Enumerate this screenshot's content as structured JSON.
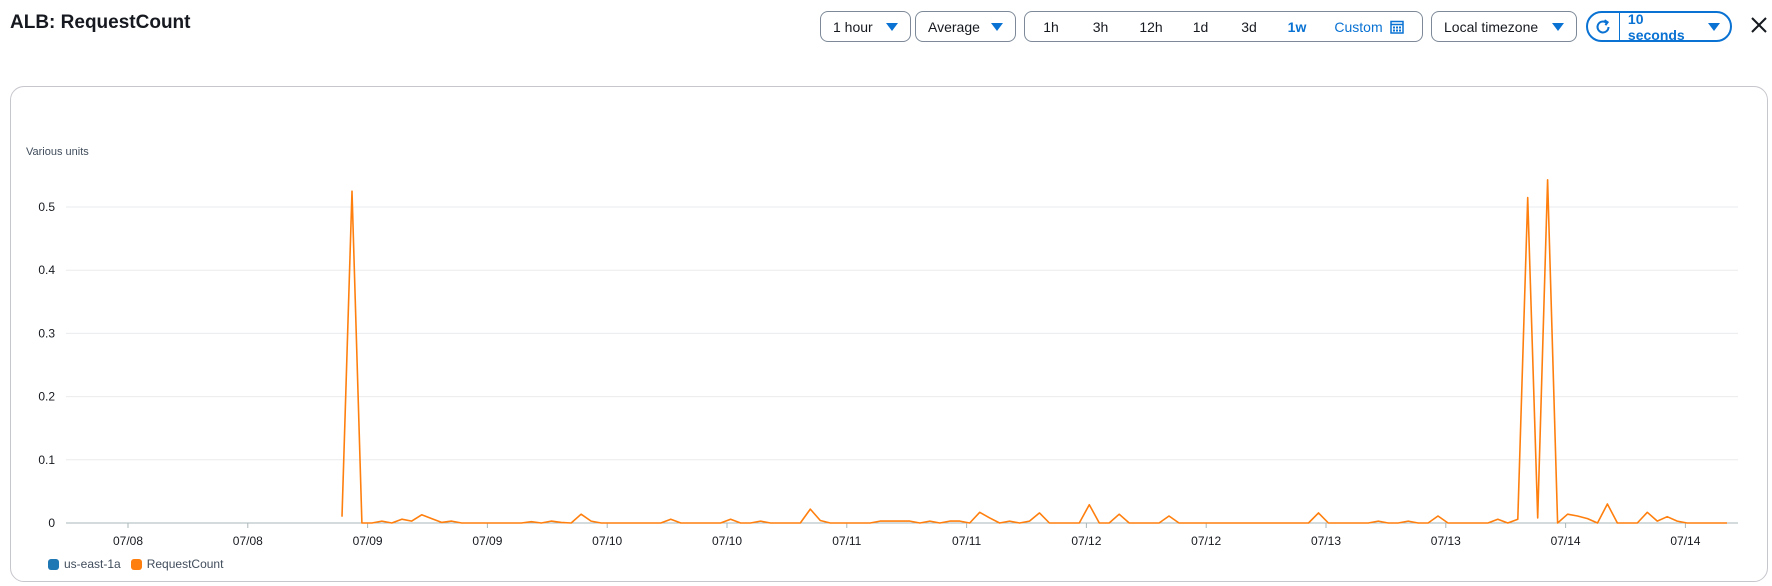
{
  "header": {
    "title": "ALB: RequestCount"
  },
  "toolbar": {
    "period": "1 hour",
    "statistic": "Average",
    "ranges": [
      "1h",
      "3h",
      "12h",
      "1d",
      "3d",
      "1w"
    ],
    "active_range": "1w",
    "custom_label": "Custom",
    "timezone": "Local timezone",
    "refresh_interval": "10 seconds"
  },
  "icons": {
    "calendar": "calendar-icon",
    "refresh": "refresh-icon",
    "close": "close-icon",
    "caret": "caret-down-icon"
  },
  "colors": {
    "accent": "#0972d3",
    "series_1": "#1f77b4",
    "series_2": "#ff7f0e",
    "grid": "#e9ebed"
  },
  "chart_data": {
    "type": "line",
    "ylabel": "Various units",
    "ylim": [
      0,
      0.55
    ],
    "yticks": [
      0,
      0.1,
      0.2,
      0.3,
      0.4,
      0.5
    ],
    "xtick_labels": [
      "07/08",
      "07/08",
      "07/09",
      "07/09",
      "07/10",
      "07/10",
      "07/11",
      "07/11",
      "07/12",
      "07/12",
      "07/13",
      "07/13",
      "07/14",
      "07/14"
    ],
    "grid": true,
    "legend_position": "bottom-left",
    "legend": [
      "us-east-1a",
      "RequestCount"
    ],
    "series": [
      {
        "name": "RequestCount",
        "color": "#ff7f0e",
        "values": [
          0.01,
          0.525,
          0,
          0,
          0.003,
          0,
          0.006,
          0.003,
          0.013,
          0.007,
          0.001,
          0.003,
          0,
          0,
          0,
          0,
          0,
          0,
          0,
          0.002,
          0,
          0.003,
          0.001,
          0,
          0.014,
          0.003,
          0,
          0,
          0,
          0,
          0,
          0,
          0,
          0.006,
          0,
          0,
          0,
          0,
          0,
          0.006,
          0,
          0,
          0.003,
          0,
          0,
          0,
          0,
          0.022,
          0.004,
          0,
          0,
          0,
          0,
          0,
          0.003,
          0.003,
          0.003,
          0.003,
          0,
          0.003,
          0,
          0.003,
          0.003,
          0,
          0.017,
          0.008,
          0,
          0.003,
          0,
          0.003,
          0.016,
          0,
          0,
          0,
          0,
          0.029,
          0,
          0,
          0.014,
          0,
          0,
          0,
          0,
          0.011,
          0,
          0,
          0,
          0,
          0,
          0,
          0,
          0,
          0,
          0,
          0,
          0,
          0,
          0,
          0.016,
          0,
          0,
          0,
          0,
          0,
          0.003,
          0,
          0,
          0.003,
          0,
          0,
          0.011,
          0,
          0,
          0,
          0,
          0,
          0.006,
          0,
          0.006,
          0.515,
          0.008,
          0.543,
          0,
          0.014,
          0.011,
          0.007,
          0,
          0.03,
          0,
          0,
          0,
          0.017,
          0.003,
          0.01,
          0.003,
          0,
          0,
          0,
          0,
          0
        ]
      }
    ]
  }
}
